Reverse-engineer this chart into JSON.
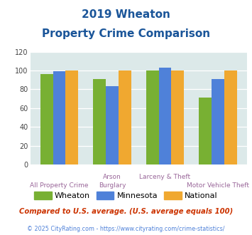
{
  "title_line1": "2019 Wheaton",
  "title_line2": "Property Crime Comparison",
  "wheaton": [
    96,
    91,
    100,
    71
  ],
  "minnesota": [
    99,
    83,
    103,
    91
  ],
  "national": [
    100,
    100,
    100,
    100
  ],
  "color_wheaton": "#78b033",
  "color_minnesota": "#4f81d9",
  "color_national": "#f0a830",
  "ylim": [
    0,
    120
  ],
  "yticks": [
    0,
    20,
    40,
    60,
    80,
    100,
    120
  ],
  "background_color": "#dce9e9",
  "legend_labels": [
    "Wheaton",
    "Minnesota",
    "National"
  ],
  "top_labels": [
    "",
    "Arson",
    "Larceny & Theft",
    ""
  ],
  "bot_labels": [
    "All Property Crime",
    "Burglary",
    "",
    "Motor Vehicle Theft"
  ],
  "footnote1": "Compared to U.S. average. (U.S. average equals 100)",
  "footnote2": "© 2025 CityRating.com - https://www.cityrating.com/crime-statistics/",
  "title_color": "#1a5599",
  "xlabel_color": "#996699",
  "footnote1_color": "#cc3300",
  "footnote2_color": "#4f81d9"
}
